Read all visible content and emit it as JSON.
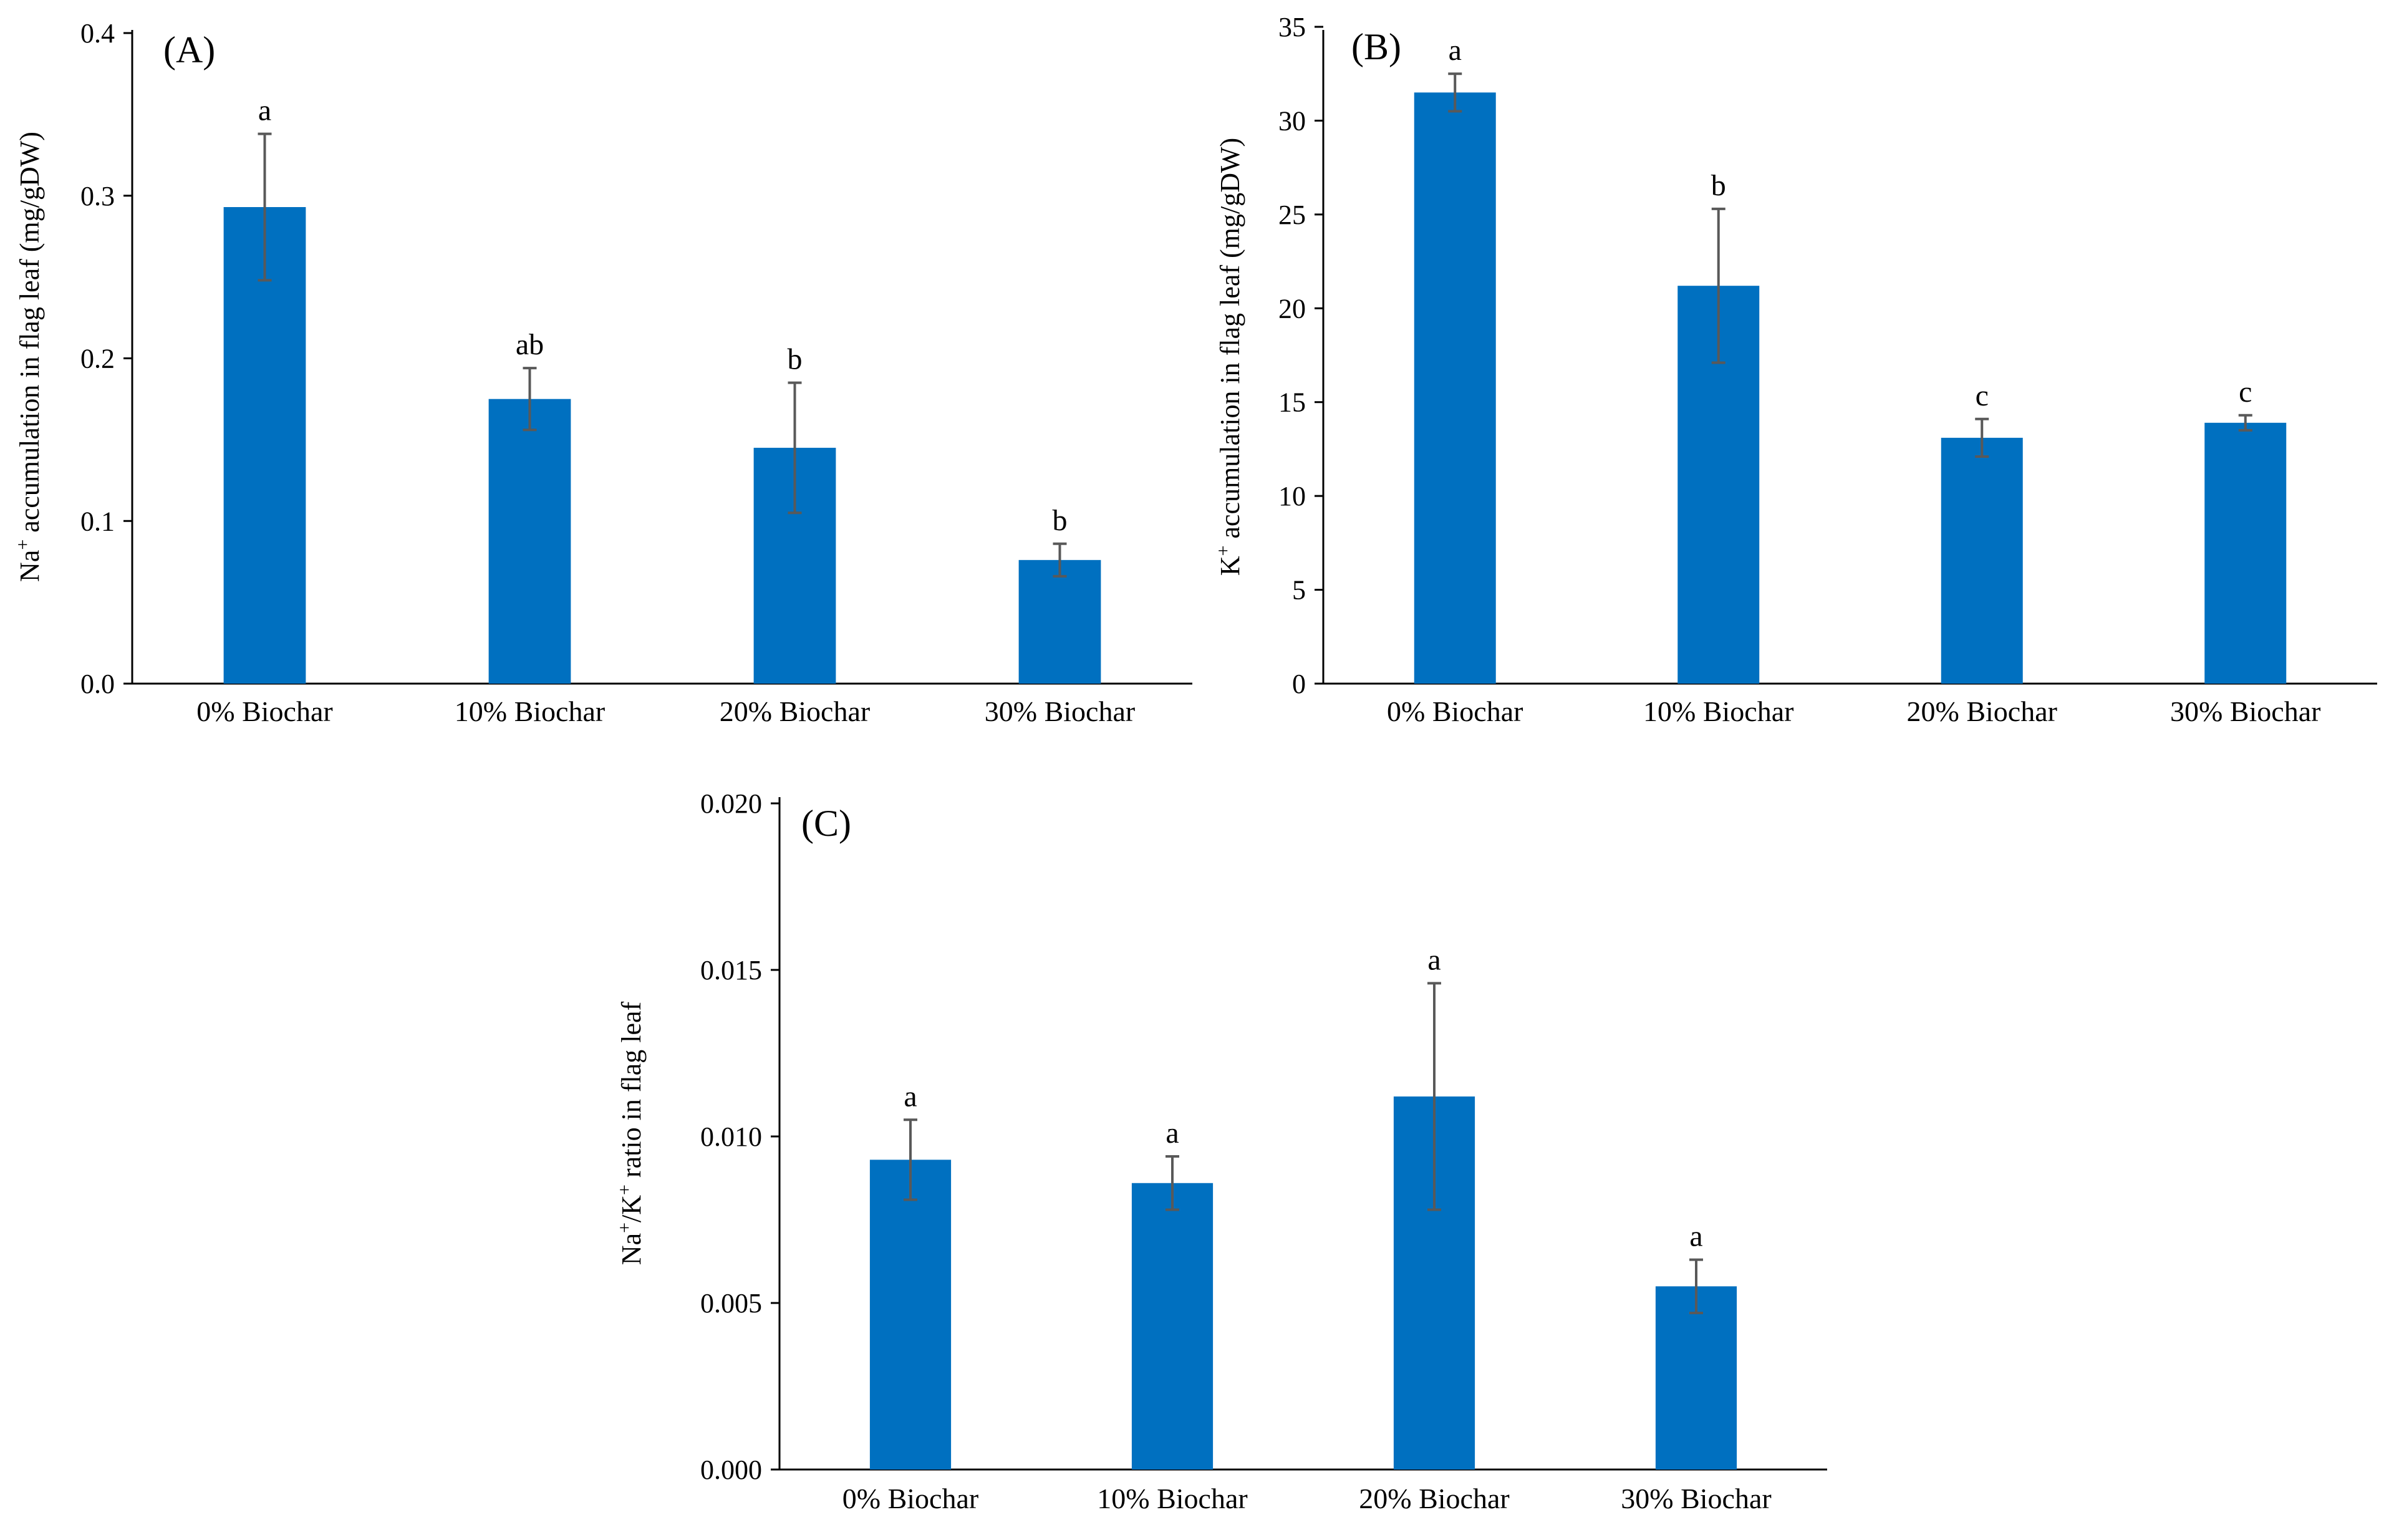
{
  "figure": {
    "bar_color": "#0070C0",
    "error_bar_color": "#595959",
    "axis_color": "#000000"
  },
  "chart_data": [
    {
      "id": "A",
      "type": "bar",
      "panel_label": "(A)",
      "title": "",
      "xlabel": "",
      "ylabel_prefix": "Na",
      "ylabel_sup": "+",
      "ylabel_suffix": " accumulation in flag leaf (mg/gDW)",
      "categories": [
        "0% Biochar",
        "10% Biochar",
        "20% Biochar",
        "30% Biochar"
      ],
      "values": [
        0.293,
        0.175,
        0.145,
        0.076
      ],
      "errors": [
        0.045,
        0.019,
        0.04,
        0.01
      ],
      "significance": [
        "a",
        "ab",
        "b",
        "b"
      ],
      "ylim": [
        0,
        0.4
      ],
      "yticks": [
        0,
        0.1,
        0.2,
        0.3,
        0.4
      ],
      "ytick_labels": [
        "0.0",
        "0.1",
        "0.2",
        "0.3",
        "0.4"
      ],
      "grid": false
    },
    {
      "id": "B",
      "type": "bar",
      "panel_label": "(B)",
      "title": "",
      "xlabel": "",
      "ylabel_prefix": "K",
      "ylabel_sup": "+",
      "ylabel_suffix": " accumulation in flag leaf (mg/gDW)",
      "categories": [
        "0% Biochar",
        "10% Biochar",
        "20% Biochar",
        "30% Biochar"
      ],
      "values": [
        31.5,
        21.2,
        13.1,
        13.9
      ],
      "errors": [
        1.0,
        4.1,
        1.0,
        0.4
      ],
      "significance": [
        "a",
        "b",
        "c",
        "c"
      ],
      "ylim": [
        0,
        35
      ],
      "yticks": [
        0,
        5,
        10,
        15,
        20,
        25,
        30,
        35
      ],
      "ytick_labels": [
        "0",
        "5",
        "10",
        "15",
        "20",
        "25",
        "30",
        "35"
      ],
      "grid": false
    },
    {
      "id": "C",
      "type": "bar",
      "panel_label": "(C)",
      "title": "",
      "xlabel": "",
      "ylabel_prefix": "Na",
      "ylabel_sup": "+",
      "ylabel_mid": "/K",
      "ylabel_sup2": "+",
      "ylabel_suffix": " ratio in flag leaf",
      "categories": [
        "0% Biochar",
        "10% Biochar",
        "20% Biochar",
        "30% Biochar"
      ],
      "values": [
        0.0093,
        0.0086,
        0.0112,
        0.0055
      ],
      "errors": [
        0.0012,
        0.0008,
        0.0034,
        0.0008
      ],
      "significance": [
        "a",
        "a",
        "a",
        "a"
      ],
      "ylim": [
        0,
        0.02
      ],
      "yticks": [
        0,
        0.005,
        0.01,
        0.015,
        0.02
      ],
      "ytick_labels": [
        "0.000",
        "0.005",
        "0.010",
        "0.015",
        "0.020"
      ],
      "grid": false
    }
  ]
}
